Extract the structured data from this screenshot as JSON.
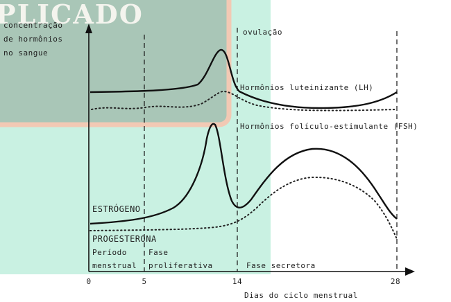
{
  "watermark": "PLICADO",
  "y_axis_label": [
    "concentração",
    "de hormônios",
    "no sangue"
  ],
  "annotations": {
    "ovulation": "ovulação",
    "lh": "Hormônios luteinizante (LH)",
    "fsh": "Hormônios folículo-estimulante (FSH)",
    "estrogen": "ESTRÓGENO",
    "progesterone": "PROGESTERONA"
  },
  "phases": [
    [
      "Período",
      "menstrual"
    ],
    [
      "Fase",
      "proliferativa"
    ],
    [
      "Fase secretora"
    ]
  ],
  "x_axis": {
    "ticks": [
      "0",
      "5",
      "14",
      "28"
    ],
    "label": "Dias do ciclo menstrual"
  }
}
